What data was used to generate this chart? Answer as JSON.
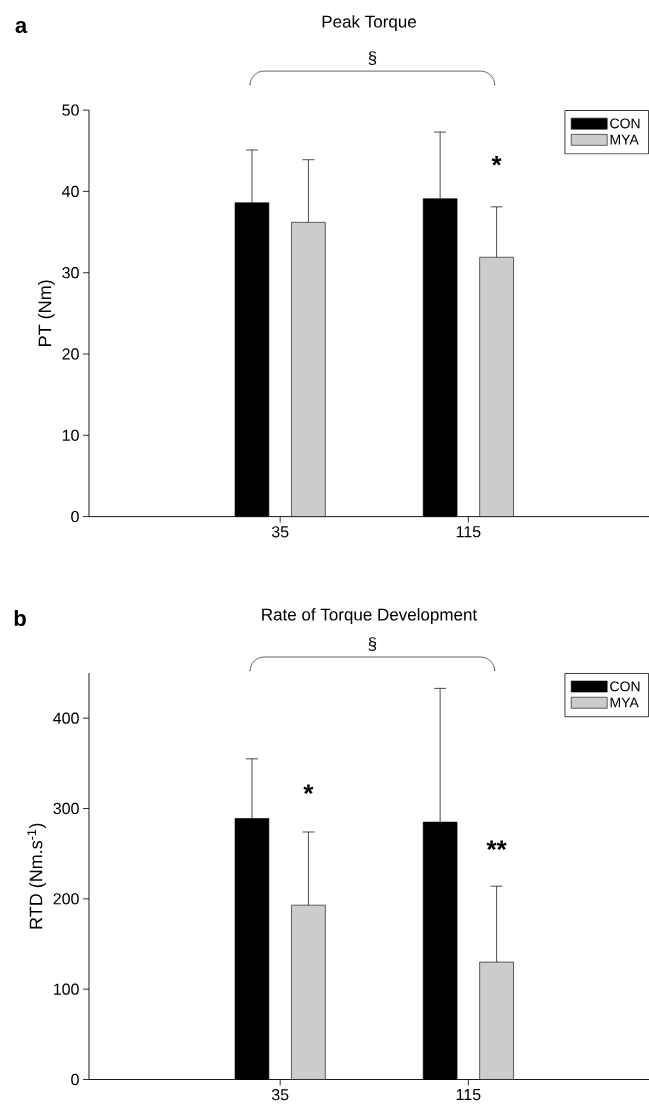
{
  "chart_data": [
    {
      "type": "bar",
      "title": "Peak Torque",
      "ylabel": "PT (Nm)",
      "categories": [
        "35",
        "115"
      ],
      "series": [
        {
          "name": "CON",
          "color": "#000000",
          "values": [
            38.6,
            39.1
          ],
          "errors": [
            [
              38.6,
              45.1
            ],
            [
              39.1,
              47.3
            ]
          ]
        },
        {
          "name": "MYA",
          "color": "#cccccc",
          "values": [
            36.2,
            31.9
          ],
          "errors": [
            [
              36.2,
              43.9
            ],
            [
              31.9,
              38.1
            ]
          ]
        }
      ],
      "ylim": [
        0,
        50
      ],
      "yticks": [
        0,
        10,
        20,
        30,
        40,
        50
      ],
      "legend": "top right",
      "annotations": [
        "a",
        "§",
        "*"
      ]
    },
    {
      "type": "bar",
      "title": "Rate of Torque Development",
      "ylabel": "RTD (Nm.s$^{-1}$)",
      "categories": [
        "35",
        "115"
      ],
      "series": [
        {
          "name": "CON",
          "color": "#000000",
          "values": [
            289,
            285
          ],
          "errors": [
            [
              289,
              355
            ],
            [
              285,
              433
            ]
          ]
        },
        {
          "name": "MYA",
          "color": "#cccccc",
          "values": [
            193,
            130
          ],
          "errors": [
            [
              193,
              274
            ],
            [
              130,
              214
            ]
          ]
        }
      ],
      "ylim": [
        0,
        450
      ],
      "yticks": [
        0,
        100,
        200,
        300,
        400
      ],
      "legend": "top right",
      "annotations": [
        "b",
        "§",
        "*",
        "**"
      ]
    }
  ]
}
